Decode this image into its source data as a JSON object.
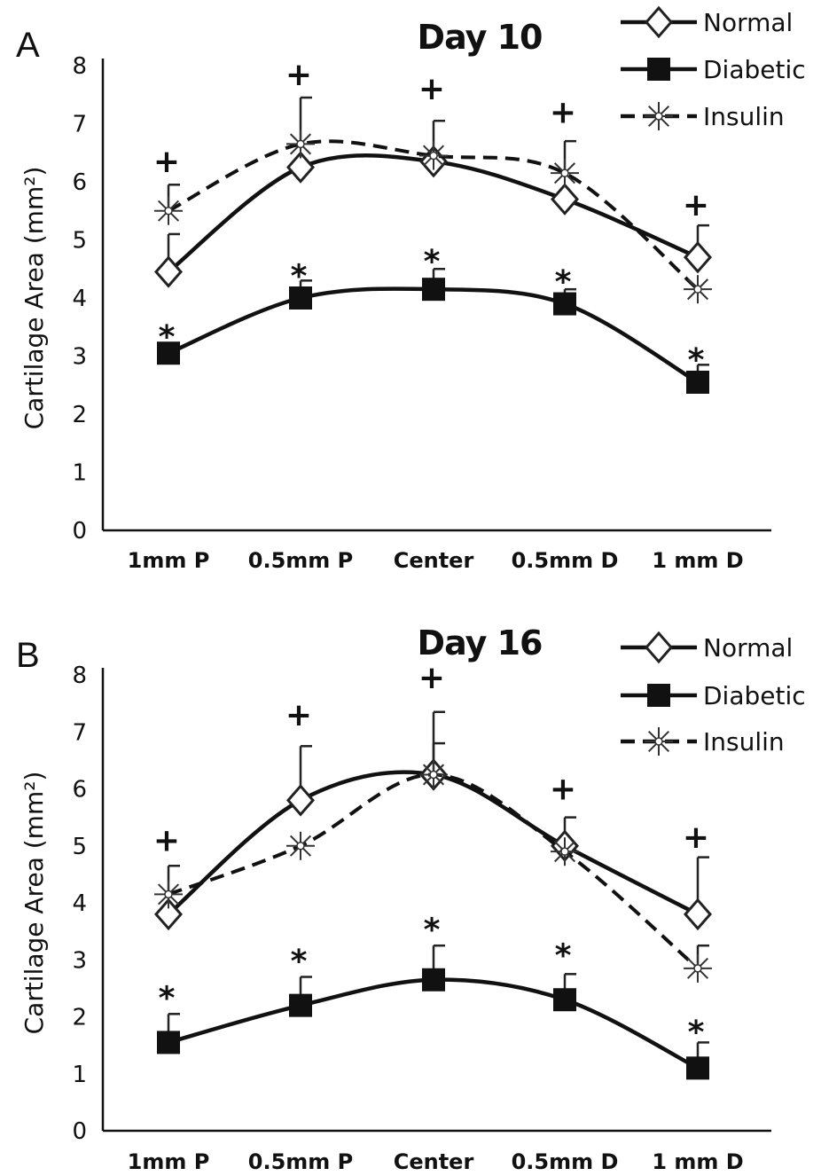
{
  "chart_data": [
    {
      "type": "line",
      "panel_label": "A",
      "title": "Day 10",
      "ylabel": "Cartilage Area (mm²)",
      "xlabel": "",
      "ylim": [
        0,
        8
      ],
      "yticks": [
        "0",
        "1",
        "2",
        "3",
        "4",
        "5",
        "6",
        "7",
        "8"
      ],
      "categories": [
        "1mm P",
        "0.5mm P",
        "Center",
        "0.5mm D",
        "1 mm D"
      ],
      "legend_position": "top-right",
      "series": [
        {
          "name": "Normal",
          "marker": "diamond-open",
          "line": "solid",
          "values": [
            4.45,
            6.25,
            6.35,
            5.7,
            4.7
          ],
          "err": [
            0.65,
            0.0,
            0.0,
            0.0,
            0.55
          ]
        },
        {
          "name": "Diabetic",
          "marker": "square-filled",
          "line": "solid",
          "values": [
            3.05,
            4.0,
            4.15,
            3.9,
            2.55
          ],
          "err": [
            0.0,
            0.3,
            0.35,
            0.25,
            0.3
          ]
        },
        {
          "name": "Insulin",
          "marker": "asterisk",
          "line": "dashed",
          "values": [
            5.5,
            6.65,
            6.45,
            6.15,
            4.15
          ],
          "err": [
            0.45,
            0.8,
            0.6,
            0.55,
            0.0
          ]
        }
      ],
      "annotations": [
        {
          "text": "+",
          "category": "1mm P",
          "y": 6.35
        },
        {
          "text": "+",
          "category": "0.5mm P",
          "y": 7.85
        },
        {
          "text": "+",
          "category": "Center",
          "y": 7.6
        },
        {
          "text": "+",
          "category": "0.5mm D",
          "y": 7.2
        },
        {
          "text": "+",
          "category": "1 mm D",
          "y": 5.6
        },
        {
          "text": "*",
          "category": "1mm P",
          "y": 3.45
        },
        {
          "text": "*",
          "category": "0.5mm P",
          "y": 4.5
        },
        {
          "text": "*",
          "category": "Center",
          "y": 4.75
        },
        {
          "text": "*",
          "category": "0.5mm D",
          "y": 4.4
        },
        {
          "text": "*",
          "category": "1 mm D",
          "y": 3.05
        }
      ]
    },
    {
      "type": "line",
      "panel_label": "B",
      "title": "Day 16",
      "ylabel": "Cartilage Area (mm²)",
      "xlabel": "",
      "ylim": [
        0,
        8
      ],
      "yticks": [
        "0",
        "1",
        "2",
        "3",
        "4",
        "5",
        "6",
        "7",
        "8"
      ],
      "categories": [
        "1mm P",
        "0.5mm P",
        "Center",
        "0.5mm D",
        "1 mm D"
      ],
      "legend_position": "top-right",
      "series": [
        {
          "name": "Normal",
          "marker": "diamond-open",
          "line": "solid",
          "values": [
            3.8,
            5.8,
            6.25,
            5.0,
            3.8
          ],
          "err": [
            0.0,
            0.95,
            0.55,
            0.5,
            1.0
          ]
        },
        {
          "name": "Diabetic",
          "marker": "square-filled",
          "line": "solid",
          "values": [
            1.55,
            2.2,
            2.65,
            2.3,
            1.1
          ],
          "err": [
            0.5,
            0.5,
            0.6,
            0.45,
            0.45
          ]
        },
        {
          "name": "Insulin",
          "marker": "asterisk",
          "line": "dashed",
          "values": [
            4.15,
            5.0,
            6.25,
            4.9,
            2.85
          ],
          "err": [
            0.5,
            0.0,
            1.1,
            0.0,
            0.4
          ]
        }
      ],
      "annotations": [
        {
          "text": "+",
          "category": "1mm P",
          "y": 5.1
        },
        {
          "text": "+",
          "category": "0.5mm P",
          "y": 7.3
        },
        {
          "text": "+",
          "category": "Center",
          "y": 7.95
        },
        {
          "text": "+",
          "category": "0.5mm D",
          "y": 6.0
        },
        {
          "text": "+",
          "category": "1 mm D",
          "y": 5.15
        },
        {
          "text": "*",
          "category": "1mm P",
          "y": 2.45
        },
        {
          "text": "*",
          "category": "0.5mm P",
          "y": 3.1
        },
        {
          "text": "*",
          "category": "Center",
          "y": 3.65
        },
        {
          "text": "*",
          "category": "0.5mm D",
          "y": 3.2
        },
        {
          "text": "*",
          "category": "1 mm D",
          "y": 1.85
        }
      ]
    }
  ]
}
